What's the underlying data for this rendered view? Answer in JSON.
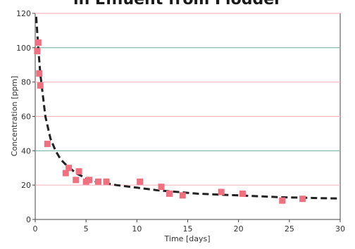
{
  "chart_data": {
    "type": "scatter",
    "title": "in Effluent from Flodder",
    "xlabel": "Time [days]",
    "ylabel": "Concentration [ppm]",
    "xlim": [
      0,
      30
    ],
    "ylim": [
      0,
      120
    ],
    "x_ticks": [
      0,
      5,
      10,
      15,
      20,
      25,
      30
    ],
    "y_ticks": [
      0,
      20,
      40,
      60,
      80,
      100,
      120
    ],
    "gridlines": [
      {
        "y": 20,
        "color": "#f2b8c0"
      },
      {
        "y": 40,
        "color": "#7ab0a4"
      },
      {
        "y": 60,
        "color": "#f2b8c0"
      },
      {
        "y": 80,
        "color": "#f2b8c0"
      },
      {
        "y": 100,
        "color": "#7ab0a4"
      },
      {
        "y": 120,
        "color": "#f2b8c0"
      }
    ],
    "series": [
      {
        "type": "scatter",
        "color": "#f07080",
        "points": [
          [
            0.2,
            98
          ],
          [
            0.3,
            103
          ],
          [
            0.4,
            85
          ],
          [
            0.5,
            78
          ],
          [
            1.2,
            44
          ],
          [
            3.0,
            27
          ],
          [
            3.3,
            30
          ],
          [
            4.0,
            23
          ],
          [
            4.3,
            28
          ],
          [
            5.0,
            22
          ],
          [
            5.3,
            23
          ],
          [
            6.2,
            22
          ],
          [
            7.0,
            22
          ],
          [
            10.3,
            22
          ],
          [
            12.4,
            19
          ],
          [
            13.2,
            15
          ],
          [
            14.5,
            14
          ],
          [
            18.3,
            16
          ],
          [
            20.4,
            15
          ],
          [
            24.3,
            11
          ],
          [
            26.3,
            12
          ]
        ]
      },
      {
        "type": "line",
        "style": "dashed",
        "color": "#222222",
        "points": [
          [
            0.1,
            118
          ],
          [
            0.3,
            100
          ],
          [
            0.5,
            85
          ],
          [
            0.8,
            70
          ],
          [
            1.0,
            60
          ],
          [
            1.5,
            47
          ],
          [
            2.0,
            40
          ],
          [
            2.5,
            35
          ],
          [
            3.0,
            32
          ],
          [
            4.0,
            27
          ],
          [
            5.0,
            24
          ],
          [
            6.0,
            22
          ],
          [
            7.0,
            21
          ],
          [
            8.0,
            20
          ],
          [
            10.0,
            18.5
          ],
          [
            12.0,
            17
          ],
          [
            14.0,
            16
          ],
          [
            16.0,
            15
          ],
          [
            18.0,
            14.5
          ],
          [
            20.0,
            14
          ],
          [
            22.0,
            13.5
          ],
          [
            24.0,
            13
          ],
          [
            26.0,
            12.7
          ],
          [
            28.0,
            12.4
          ],
          [
            29.8,
            12.2
          ]
        ]
      }
    ]
  }
}
